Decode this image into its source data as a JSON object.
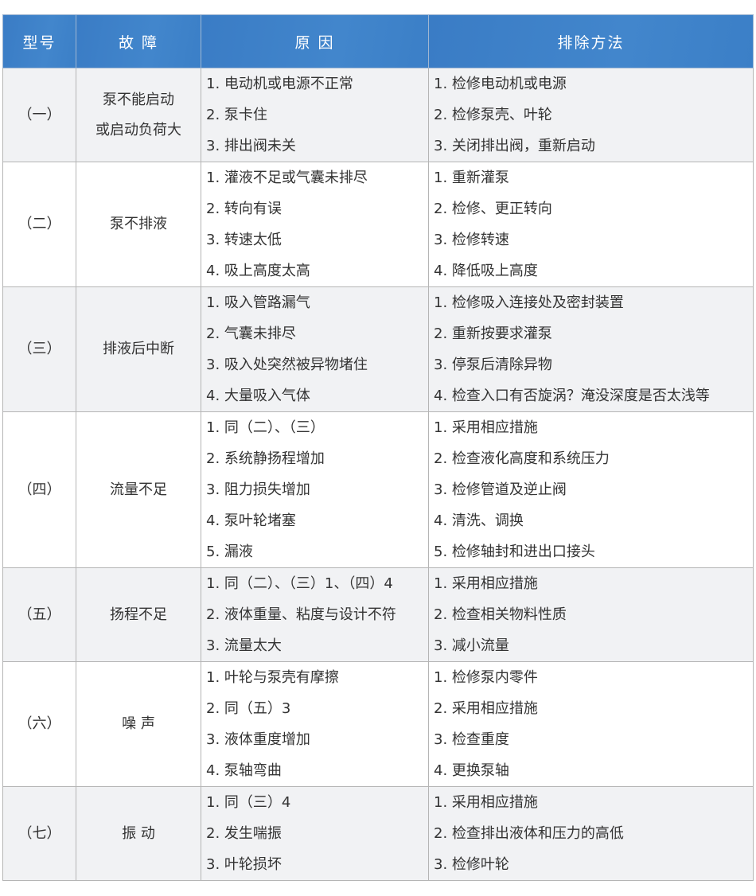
{
  "header": {
    "model": "型号",
    "fault": "故 障",
    "cause": "原 因",
    "remedy": "排除方法"
  },
  "rows": [
    {
      "model": "（一）",
      "fault": "泵不能启动\n或启动负荷大",
      "causes": [
        "1. 电动机或电源不正常",
        "2. 泵卡住",
        "3. 排出阀未关"
      ],
      "remedies": [
        "1. 检修电动机或电源",
        "2. 检修泵壳、叶轮",
        "3. 关闭排出阀，重新启动"
      ]
    },
    {
      "model": "（二）",
      "fault": "泵不排液",
      "causes": [
        "1. 灌液不足或气囊未排尽",
        "2. 转向有误",
        "3. 转速太低",
        "4. 吸上高度太高"
      ],
      "remedies": [
        "1. 重新灌泵",
        "2. 检修、更正转向",
        "3. 检修转速",
        "4. 降低吸上高度"
      ]
    },
    {
      "model": "（三）",
      "fault": "排液后中断",
      "causes": [
        "1. 吸入管路漏气",
        "2. 气囊未排尽",
        "3. 吸入处突然被异物堵住",
        "4. 大量吸入气体"
      ],
      "remedies": [
        "1. 检修吸入连接处及密封装置",
        "2. 重新按要求灌泵",
        "3. 停泵后清除异物",
        "4. 检查入口有否旋涡？淹没深度是否太浅等"
      ]
    },
    {
      "model": "（四）",
      "fault": "流量不足",
      "causes": [
        "1. 同（二）、（三）",
        "2. 系统静扬程增加",
        "3. 阻力损失增加",
        "4. 泵叶轮堵塞",
        "5. 漏液"
      ],
      "remedies": [
        "1. 采用相应措施",
        "2. 检查液化高度和系统压力",
        "3. 检修管道及逆止阀",
        "4. 清洗、调换",
        "5. 检修轴封和进出口接头"
      ]
    },
    {
      "model": "（五）",
      "fault": "扬程不足",
      "causes": [
        "1. 同（二）、（三）1、（四）4",
        "2. 液体重量、粘度与设计不符",
        "3. 流量太大"
      ],
      "remedies": [
        "1. 采用相应措施",
        "2. 检查相关物料性质",
        "3. 减小流量"
      ]
    },
    {
      "model": "（六）",
      "fault": "噪 声",
      "causes": [
        "1. 叶轮与泵壳有摩擦",
        "2. 同（五）3",
        "3. 液体重度增加",
        "4. 泵轴弯曲"
      ],
      "remedies": [
        "1. 检修泵内零件",
        "2. 采用相应措施",
        "3. 检查重度",
        "4. 更换泵轴"
      ]
    },
    {
      "model": "（七）",
      "fault": "振 动",
      "causes": [
        "1. 同（三）4",
        "2. 发生喘振",
        "3. 叶轮损坏"
      ],
      "remedies": [
        "1. 采用相应措施",
        "2. 检查排出液体和压力的高低",
        "3. 检修叶轮"
      ]
    }
  ]
}
